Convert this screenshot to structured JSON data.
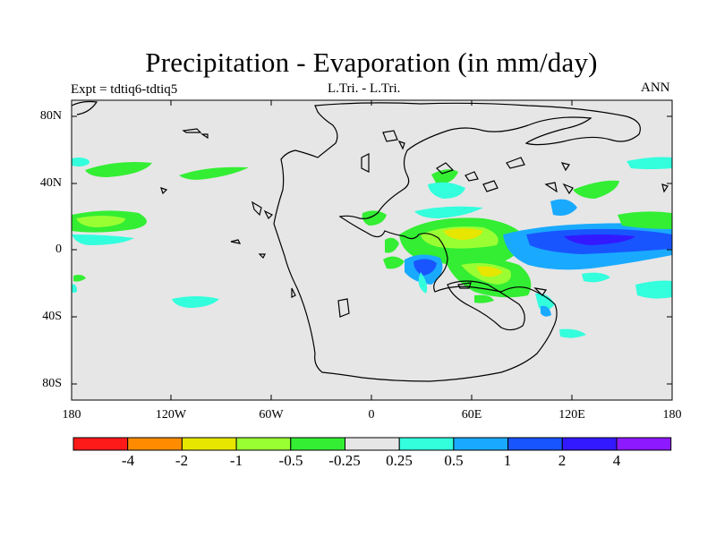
{
  "title": "Precipitation - Evaporation (in mm/day)",
  "left_label": "Expt = tdtiq6-tdtiq5",
  "center_label": "L.Tri. - L.Tri.",
  "right_label": "ANN",
  "lat_ticks": [
    "80N",
    "40N",
    "0",
    "40S",
    "80S"
  ],
  "lon_ticks": [
    "180",
    "120W",
    "60W",
    "0",
    "60E",
    "120E",
    "180"
  ],
  "colorbar": {
    "colors": [
      "#ff1a1a",
      "#ff8c00",
      "#e6e600",
      "#99ff33",
      "#33ee33",
      "#e6e6e6",
      "#33ffdd",
      "#19aaff",
      "#1955ff",
      "#3319ff",
      "#8c19ff"
    ],
    "labels": [
      "-4",
      "-2",
      "-1",
      "-0.5",
      "-0.25",
      "0.25",
      "0.5",
      "1",
      "2",
      "4"
    ]
  },
  "colors": {
    "background_field": "#e6e6e6",
    "coastline": "#000000"
  }
}
